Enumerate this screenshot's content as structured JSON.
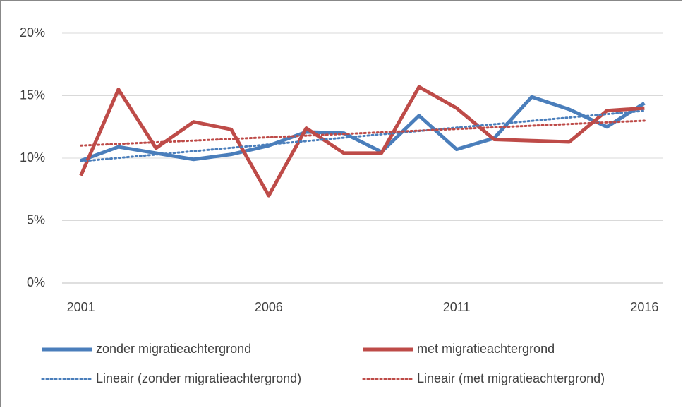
{
  "chart_data": {
    "type": "line",
    "x": [
      2001,
      2002,
      2003,
      2004,
      2005,
      2006,
      2007,
      2008,
      2009,
      2010,
      2011,
      2012,
      2013,
      2014,
      2015,
      2016
    ],
    "xlim": [
      2000.5,
      2016.5
    ],
    "xticks": [
      2001,
      2006,
      2011,
      2016
    ],
    "ylim": [
      0,
      20
    ],
    "yticks": [
      {
        "value": 0,
        "label": "0%"
      },
      {
        "value": 5,
        "label": "5%"
      },
      {
        "value": 10,
        "label": "10%"
      },
      {
        "value": 15,
        "label": "15%"
      },
      {
        "value": 20,
        "label": "20%"
      }
    ],
    "grid": true,
    "legend": "bottom",
    "series": [
      {
        "name": "zonder migratieachtergrond",
        "color": "#4a7ebb",
        "values": [
          9.8,
          10.9,
          10.4,
          9.9,
          10.3,
          11.0,
          12.1,
          12.0,
          10.5,
          13.4,
          10.7,
          11.6,
          14.9,
          13.9,
          12.5,
          14.4
        ]
      },
      {
        "name": "met migratieachtergrond",
        "color": "#be4b48",
        "values": [
          8.6,
          15.5,
          10.8,
          12.9,
          12.3,
          7.0,
          12.4,
          10.4,
          10.4,
          15.7,
          14.0,
          11.5,
          11.4,
          11.3,
          13.8,
          14.0
        ]
      }
    ],
    "trendlines": [
      {
        "name": "Lineair (zonder migratieachtergrond)",
        "of": 0,
        "kind": "linear",
        "color": "#4a7ebb"
      },
      {
        "name": "Lineair (met migratieachtergrond)",
        "of": 1,
        "kind": "linear",
        "color": "#be4b48"
      }
    ]
  }
}
